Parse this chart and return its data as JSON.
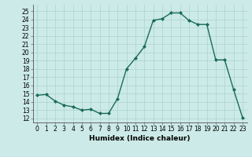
{
  "x": [
    0,
    1,
    2,
    3,
    4,
    5,
    6,
    7,
    8,
    9,
    10,
    11,
    12,
    13,
    14,
    15,
    16,
    17,
    18,
    19,
    20,
    21,
    22,
    23
  ],
  "y": [
    14.8,
    14.9,
    14.1,
    13.6,
    13.4,
    13.0,
    13.1,
    12.6,
    12.6,
    14.4,
    18.0,
    19.3,
    20.7,
    23.9,
    24.1,
    24.8,
    24.8,
    23.9,
    23.4,
    23.4,
    19.1,
    19.1,
    15.5,
    12.1
  ],
  "line_color": "#1a6b5a",
  "marker": "D",
  "marker_size": 2.0,
  "bg_color": "#cceae7",
  "grid_color": "#aad4d0",
  "xlabel": "Humidex (Indice chaleur)",
  "ylabel_ticks": [
    12,
    13,
    14,
    15,
    16,
    17,
    18,
    19,
    20,
    21,
    22,
    23,
    24,
    25
  ],
  "ylim": [
    11.5,
    25.8
  ],
  "xlim": [
    -0.5,
    23.5
  ],
  "xticks": [
    0,
    1,
    2,
    3,
    4,
    5,
    6,
    7,
    8,
    9,
    10,
    11,
    12,
    13,
    14,
    15,
    16,
    17,
    18,
    19,
    20,
    21,
    22,
    23
  ],
  "tick_fontsize": 5.5,
  "label_fontsize": 6.5,
  "linewidth": 1.0
}
